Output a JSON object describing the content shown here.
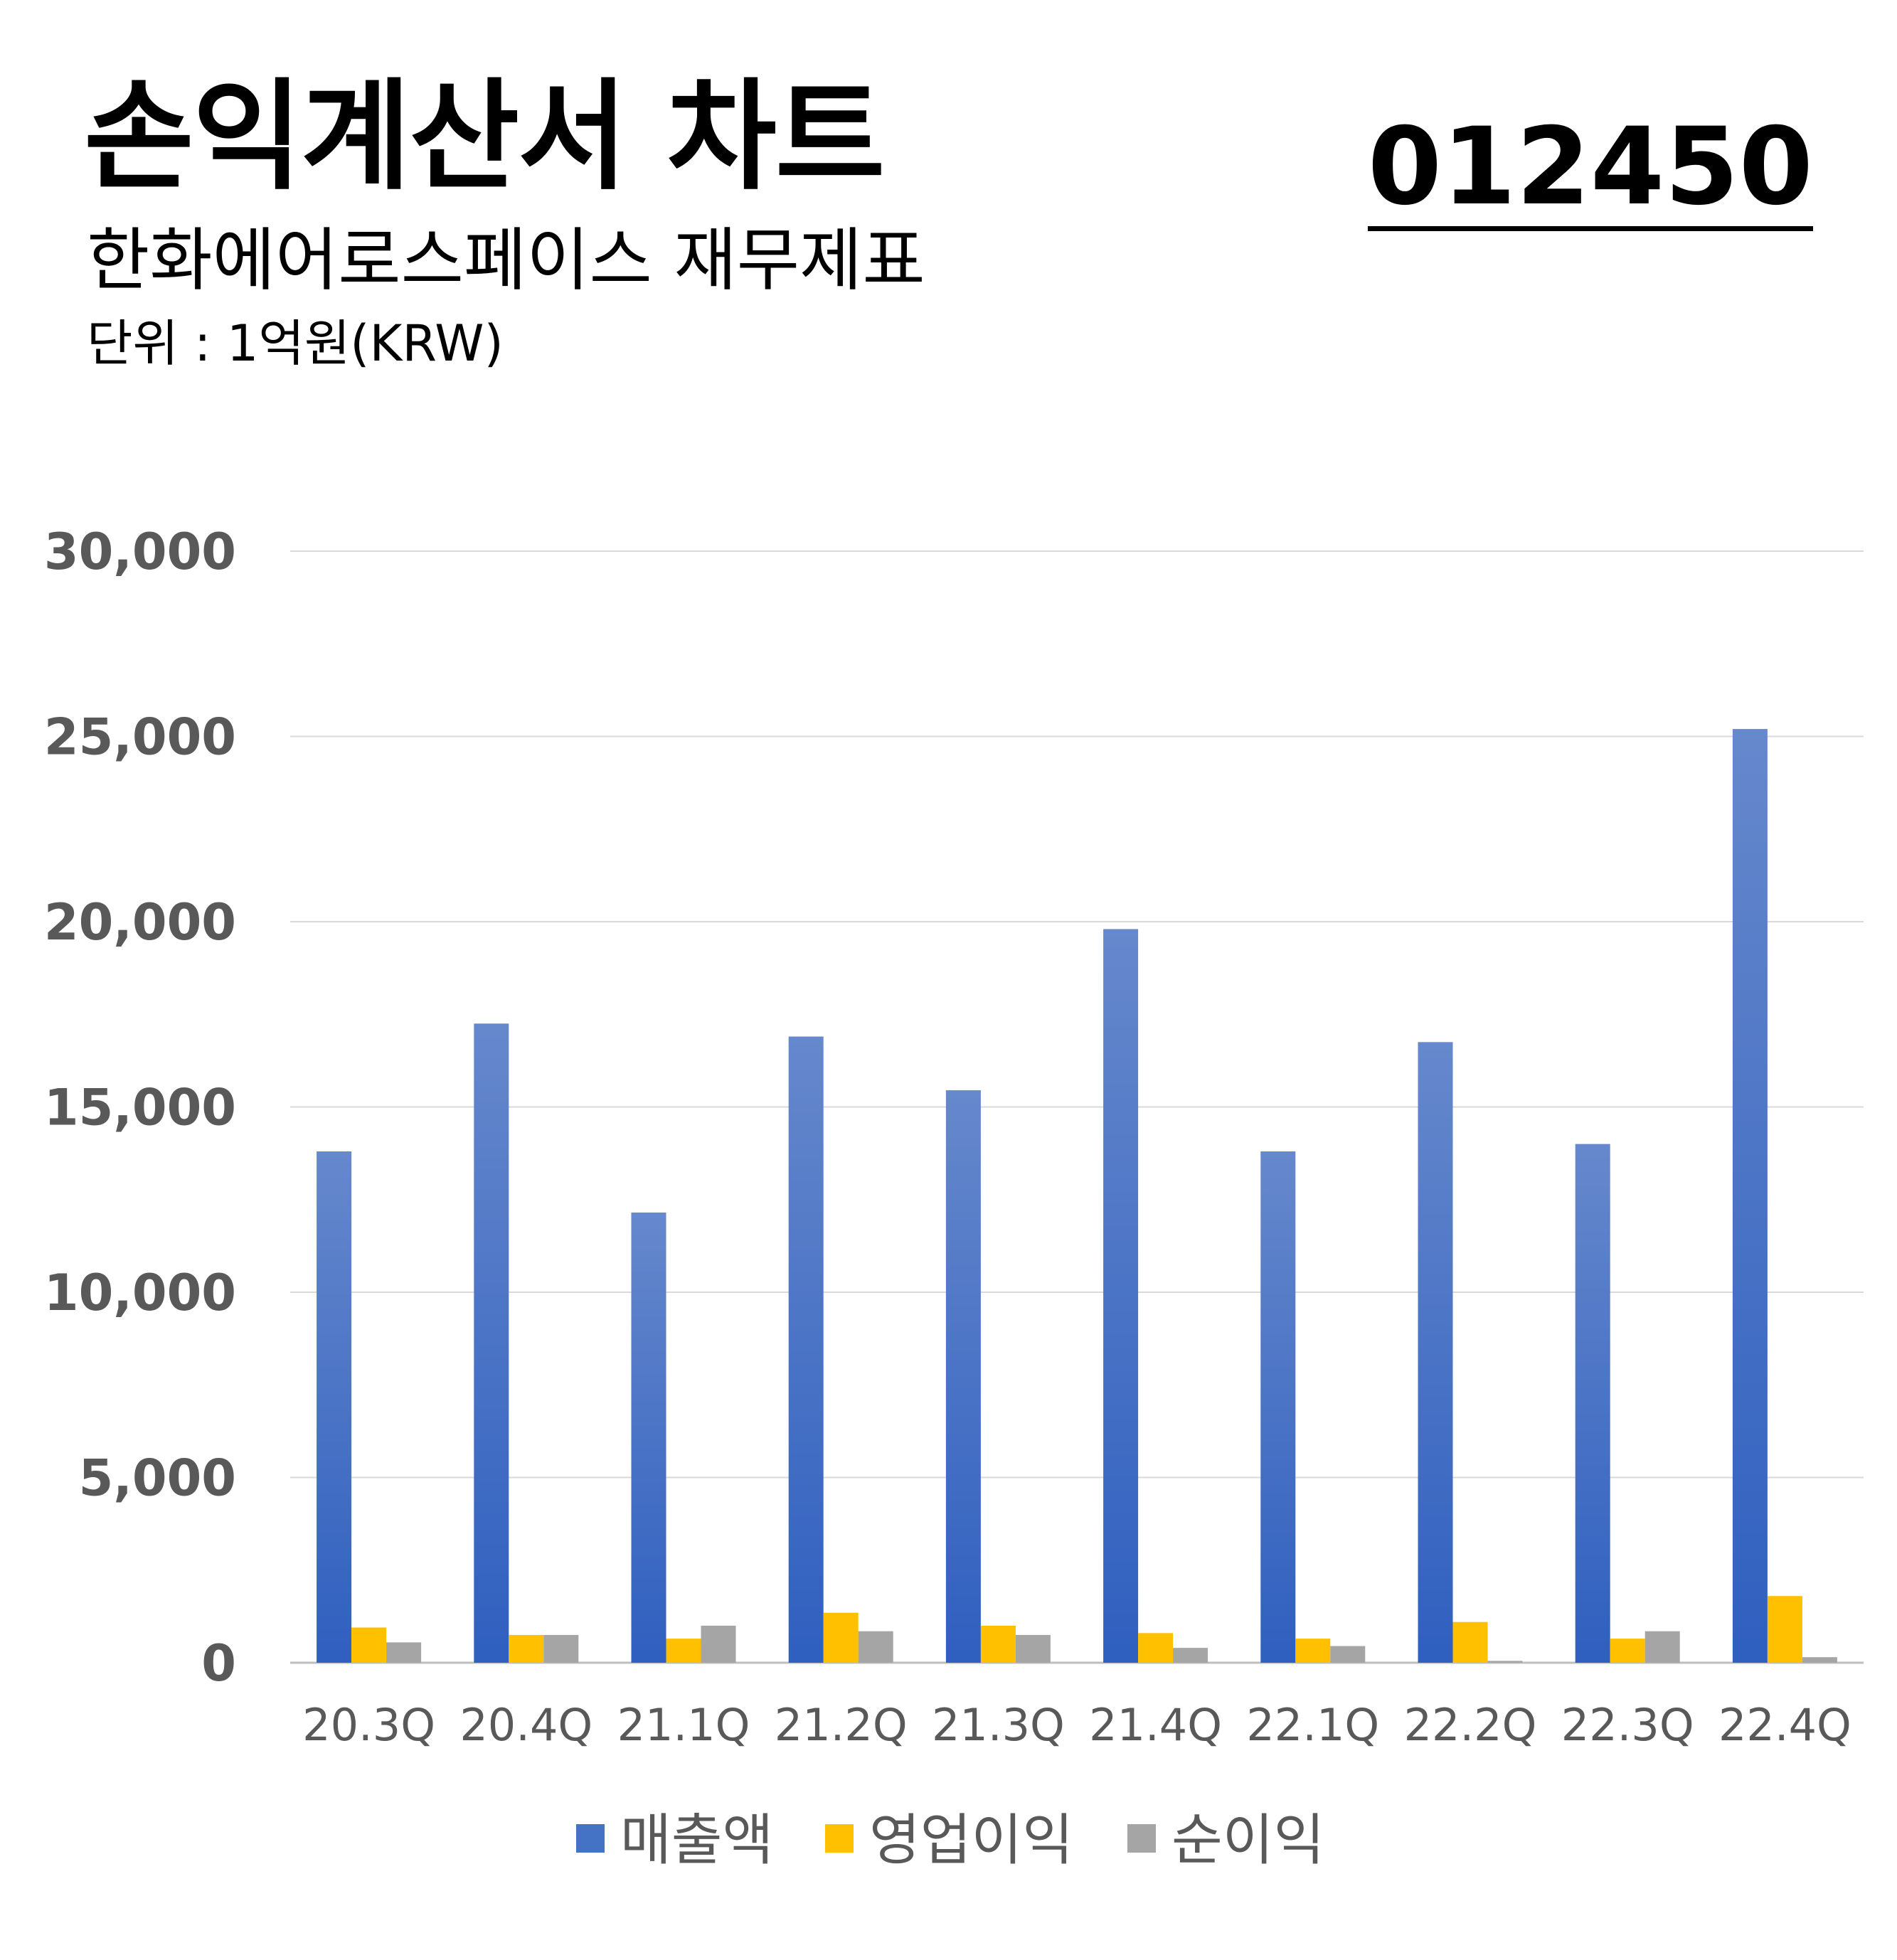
{
  "header": {
    "title": "손익계산서 차트",
    "subtitle": "한화에어로스페이스 재무제표",
    "unit": "단위 : 1억원(KRW)",
    "code": "012450"
  },
  "chart_data": {
    "type": "bar",
    "categories": [
      "20.3Q",
      "20.4Q",
      "21.1Q",
      "21.2Q",
      "21.3Q",
      "21.4Q",
      "22.1Q",
      "22.2Q",
      "22.3Q",
      "22.4Q"
    ],
    "series": [
      {
        "name": "매출액",
        "color": "#4472C4",
        "values": [
          13800,
          17250,
          12150,
          16900,
          15450,
          19800,
          13800,
          16750,
          14000,
          25200
        ]
      },
      {
        "name": "영업이익",
        "color": "#FFC000",
        "values": [
          950,
          750,
          650,
          1350,
          1000,
          800,
          650,
          1100,
          650,
          1800
        ]
      },
      {
        "name": "순이익",
        "color": "#A5A5A5",
        "values": [
          550,
          750,
          1000,
          850,
          750,
          400,
          450,
          50,
          850,
          150
        ]
      }
    ],
    "ylim": [
      0,
      30000
    ],
    "yticks": [
      "0",
      "5,000",
      "10,000",
      "15,000",
      "20,000",
      "25,000",
      "30,000"
    ],
    "grid": true,
    "legend": "bottom"
  }
}
